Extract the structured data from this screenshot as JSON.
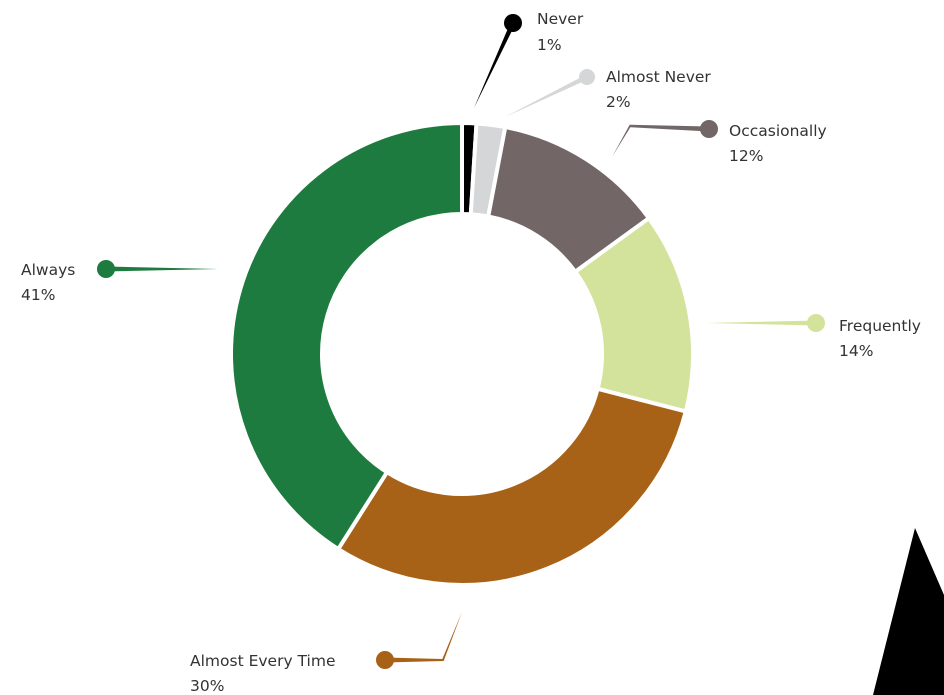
{
  "chart_data": {
    "type": "pie",
    "title": "",
    "categories": [
      "Never",
      "Almost Never",
      "Occasionally",
      "Frequently",
      "Almost Every Time",
      "Always"
    ],
    "values": [
      1,
      2,
      12,
      14,
      30,
      41
    ],
    "value_labels": [
      "1%",
      "2%",
      "12%",
      "14%",
      "30%",
      "41%"
    ],
    "colors": [
      "#000000",
      "#d4d6d8",
      "#726766",
      "#d3e39b",
      "#a86218",
      "#1e7b3f"
    ],
    "donut": true,
    "legend": "none",
    "data_labels": "outside-with-leader-lines"
  }
}
